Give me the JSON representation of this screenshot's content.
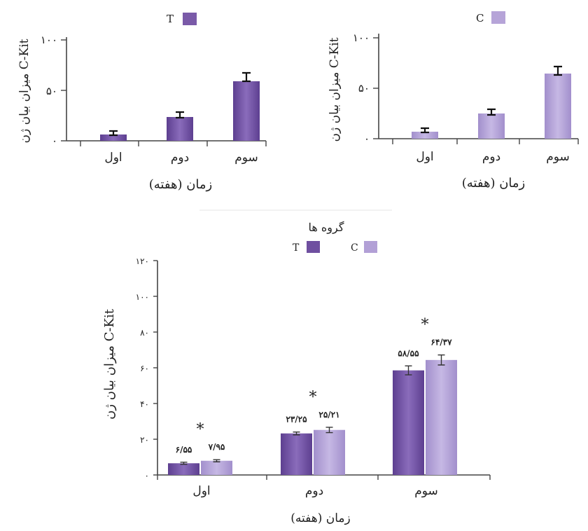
{
  "chart_data": [
    {
      "type": "bar",
      "ylabel": "میزان بیان ژن C-Kit",
      "xlabel": "زمان (هفته)",
      "categories": [
        "اول",
        "دوم",
        "سوم"
      ],
      "yticks": [
        "۱۰۰",
        "۵۰",
        "۰"
      ],
      "ylim": [
        0,
        100
      ],
      "legend_position": "top",
      "series": [
        {
          "name": "T",
          "color": "#7a5aa8",
          "values": [
            6.55,
            23.25,
            58.55
          ],
          "errors": [
            1.0,
            2.5,
            3.5
          ]
        }
      ]
    },
    {
      "type": "bar",
      "ylabel": "میزان بیان ژن C-Kit",
      "xlabel": "زمان (هفته)",
      "categories": [
        "اول",
        "دوم",
        "سوم"
      ],
      "yticks": [
        "۱۰۰",
        "۵۰",
        "۰"
      ],
      "ylim": [
        0,
        100
      ],
      "legend_position": "top",
      "series": [
        {
          "name": "C",
          "color": "#b6a4d8",
          "values": [
            7.95,
            25.21,
            64.37
          ],
          "errors": [
            1.0,
            2.0,
            3.5
          ]
        }
      ]
    },
    {
      "type": "bar",
      "ylabel": "میزان بیان ژن C-Kit",
      "xlabel": "زمان (هفته)",
      "legend_title": "گروه ها",
      "categories": [
        "اول",
        "دوم",
        "سوم"
      ],
      "yticks": [
        "۱۲۰",
        "۱۰۰",
        "۸۰",
        "۶۰",
        "۴۰",
        "۲۰",
        "۰"
      ],
      "ylim": [
        0,
        120
      ],
      "legend_position": "top",
      "significance": [
        "*",
        "*",
        "*"
      ],
      "series": [
        {
          "name": "T",
          "color": "#6f4fa0",
          "values": [
            6.55,
            23.25,
            58.55
          ],
          "errors": [
            0.6,
            0.8,
            2.5
          ],
          "labels": [
            "۶/۵۵",
            "۲۳/۲۵",
            "۵۸/۵۵"
          ]
        },
        {
          "name": "C",
          "color": "#b2a0d6",
          "values": [
            7.95,
            25.21,
            64.37
          ],
          "errors": [
            0.6,
            1.5,
            2.8
          ],
          "labels": [
            "۷/۹۵",
            "۲۵/۲۱",
            "۶۴/۳۷"
          ]
        }
      ]
    }
  ]
}
